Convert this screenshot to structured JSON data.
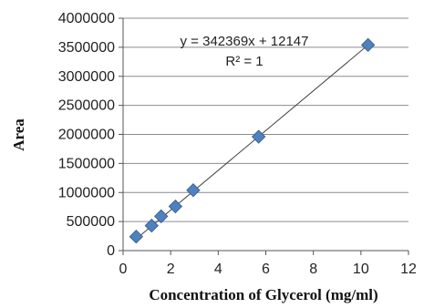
{
  "chart_data": {
    "type": "scatter",
    "xlabel": "Concentration of Glycerol (mg/ml)",
    "ylabel": "Area",
    "xlim": [
      0,
      12
    ],
    "ylim": [
      0,
      4000000
    ],
    "x_ticks": [
      0,
      2,
      4,
      6,
      8,
      10,
      12
    ],
    "y_ticks": [
      0,
      500000,
      1000000,
      1500000,
      2000000,
      2500000,
      3000000,
      3500000,
      4000000
    ],
    "x_tick_labels": [
      "0",
      "2",
      "4",
      "6",
      "8",
      "10",
      "12"
    ],
    "y_tick_labels": [
      "0",
      "500000",
      "1000000",
      "1500000",
      "2000000",
      "2500000",
      "3000000",
      "3500000",
      "4000000"
    ],
    "series": [
      {
        "x": [
          0.55,
          1.2,
          1.6,
          2.2,
          2.95,
          5.7,
          10.3
        ],
        "y": [
          240000,
          430000,
          590000,
          760000,
          1040000,
          1960000,
          3540000
        ]
      }
    ],
    "trendline": {
      "type": "linear",
      "slope": 342369,
      "intercept": 12147,
      "x_range": [
        0.55,
        10.3
      ]
    },
    "equation_label": "y = 342369x + 12147",
    "r_squared_label": "R² = 1",
    "grid": "horizontal",
    "legend": "none",
    "colors": {
      "marker_fill": "#4f81bd",
      "marker_stroke": "#3a6399",
      "gridline": "#8c8c8c",
      "trendline": "#404040"
    },
    "marker_shape": "diamond"
  }
}
